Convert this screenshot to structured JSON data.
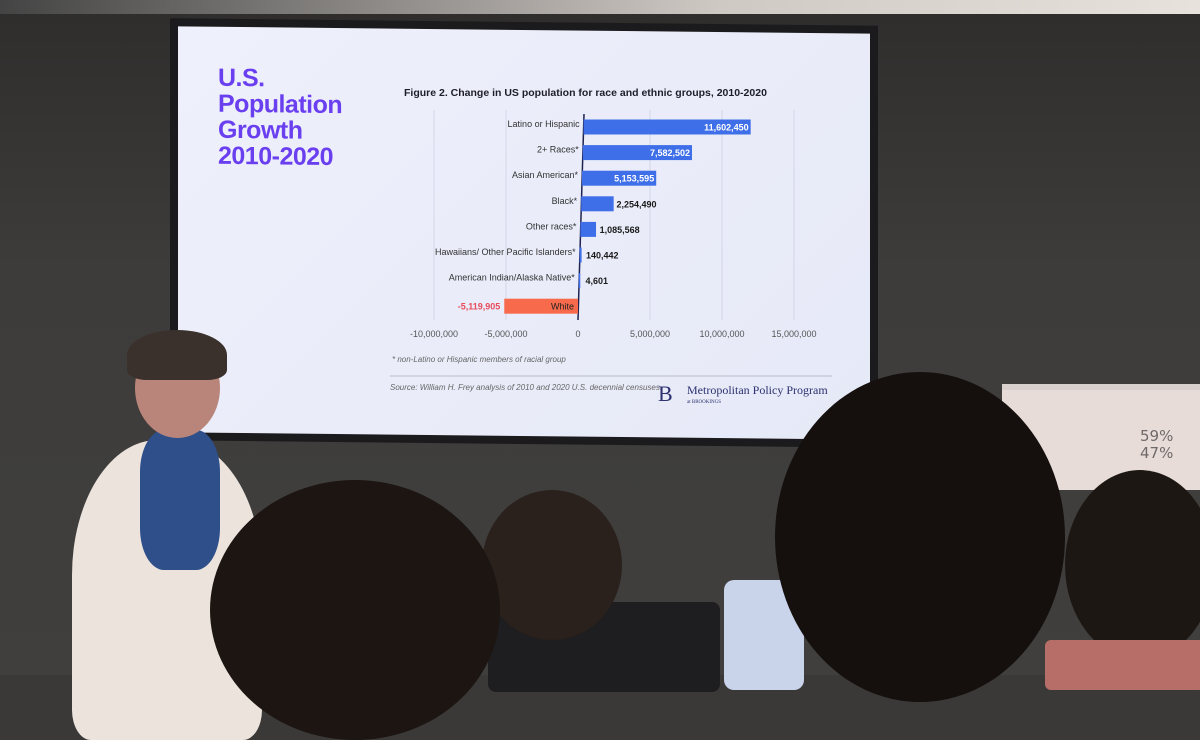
{
  "slide": {
    "title_lines": [
      "U.S.",
      "Population",
      "Growth",
      "2010-2020"
    ],
    "footnote": "* non-Latino or Hispanic members of racial group",
    "source": "Source: William H. Frey analysis of 2010 and 2020 U.S. decennial censuses.",
    "logo_letter": "B",
    "logo_name": "Metropolitan Policy Program",
    "logo_sub": "at BROOKINGS"
  },
  "whiteboard": {
    "lines": [
      "59%",
      "47%"
    ]
  },
  "chart_data": {
    "type": "bar",
    "orientation": "horizontal",
    "title": "Figure 2. Change in US population for race and ethnic groups, 2010-2020",
    "categories": [
      "Latino or Hispanic",
      "2+ Races*",
      "Asian American*",
      "Black*",
      "Other races*",
      "Hawaiians/ Other Pacific Islanders*",
      "American Indian/Alaska Native*",
      "White"
    ],
    "values": [
      11602450,
      7582502,
      5153595,
      2254490,
      1085568,
      140442,
      4601,
      -5119905
    ],
    "value_labels": [
      "11,602,450",
      "7,582,502",
      "5,153,595",
      "2,254,490",
      "1,085,568",
      "140,442",
      "4,601",
      "-5,119,905"
    ],
    "xlim": [
      -10000000,
      15000000
    ],
    "x_ticks": [
      -10000000,
      -5000000,
      0,
      5000000,
      10000000,
      15000000
    ],
    "x_tick_labels": [
      "-10,000,000",
      "-5,000,000",
      "0",
      "5,000,000",
      "10,000,000",
      "15,000,000"
    ],
    "grid": true,
    "colors": {
      "positive": "#3f6fe8",
      "negative": "#f76b4c",
      "negative_label": "#e84c5c"
    }
  }
}
